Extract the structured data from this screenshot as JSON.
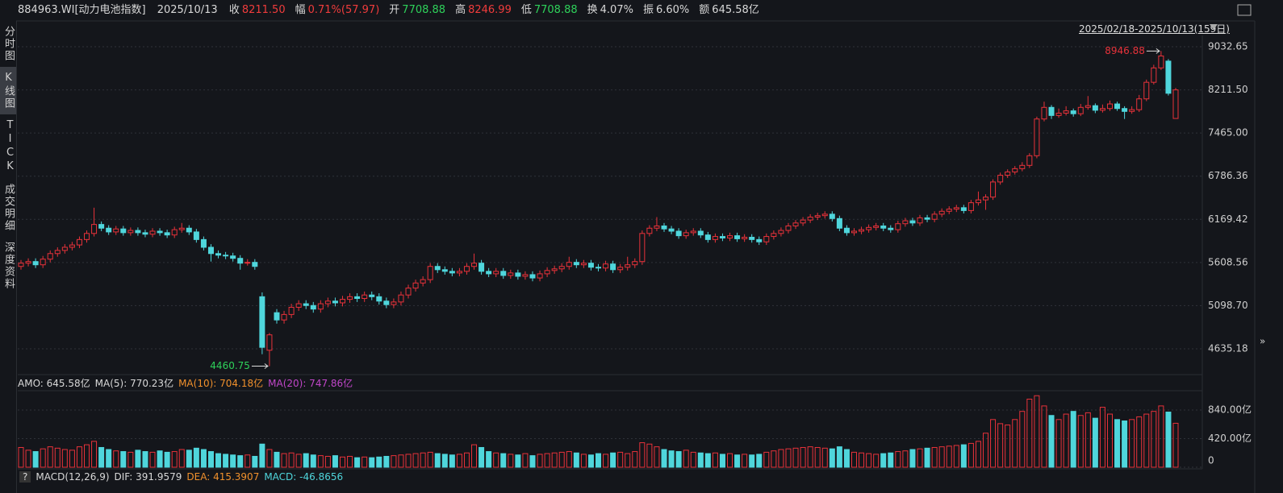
{
  "header": {
    "symbol": "884963.WI[动力电池指数]",
    "date": "2025/10/13",
    "items": [
      {
        "label": "收",
        "value": "8211.50",
        "color": "#f03c3c"
      },
      {
        "label": "幅",
        "value": "0.71%(57.97)",
        "color": "#f03c3c"
      },
      {
        "label": "开",
        "value": "7708.88",
        "color": "#2ed15a"
      },
      {
        "label": "高",
        "value": "8246.99",
        "color": "#f03c3c"
      },
      {
        "label": "低",
        "value": "7708.88",
        "color": "#2ed15a"
      },
      {
        "label": "换",
        "value": "4.07%",
        "color": "#d8d8d8"
      },
      {
        "label": "振",
        "value": "6.60%",
        "color": "#d8d8d8"
      },
      {
        "label": "额",
        "value": "645.58亿",
        "color": "#d8d8d8"
      }
    ]
  },
  "sidebar": {
    "tabs": [
      "分时图",
      "K线图",
      "TICK",
      "成交明细",
      "深度资料"
    ]
  },
  "range_label": "2025/02/18-2025/10/13(159日)",
  "volume_legend": [
    {
      "text": "AMO: 645.58亿",
      "color": "#d8d8d8"
    },
    {
      "text": "MA(5): 770.23亿",
      "color": "#d8d8d8"
    },
    {
      "text": "MA(10): 704.18亿",
      "color": "#f0902c"
    },
    {
      "text": "MA(20): 747.86亿",
      "color": "#c046c8"
    }
  ],
  "macd_legend": [
    {
      "text": "MACD(12,26,9)",
      "color": "#d8d8d8"
    },
    {
      "text": "DIF: 391.9579",
      "color": "#d8d8d8"
    },
    {
      "text": "DEA: 415.3907",
      "color": "#f0902c"
    },
    {
      "text": "MACD: -46.8656",
      "color": "#4fd6dc"
    }
  ],
  "chart_data": [
    {
      "type": "candlestick",
      "log_scale": true,
      "grid": true,
      "up_color": "#e8323a",
      "down_color": "#4fd6dc",
      "ylim": [
        4394,
        9244
      ],
      "yticks": [
        9032.65,
        {
          "value": 8211.5,
          "label": "8211.50"
        },
        {
          "value": 7465,
          "label": "7465.00"
        },
        6786.36,
        6169.42,
        5608.56,
        {
          "value": 5098.7,
          "label": "5098.70"
        },
        4635.18
      ],
      "ohlc": [
        [
          5560,
          5640,
          5520,
          5600
        ],
        [
          5600,
          5660,
          5560,
          5620
        ],
        [
          5620,
          5660,
          5540,
          5580
        ],
        [
          5580,
          5690,
          5540,
          5650
        ],
        [
          5650,
          5760,
          5610,
          5720
        ],
        [
          5720,
          5800,
          5680,
          5760
        ],
        [
          5760,
          5840,
          5720,
          5800
        ],
        [
          5800,
          5870,
          5760,
          5830
        ],
        [
          5830,
          5940,
          5790,
          5900
        ],
        [
          5900,
          6020,
          5860,
          5980
        ],
        [
          5980,
          6330,
          5940,
          6100
        ],
        [
          6100,
          6140,
          6010,
          6050
        ],
        [
          6050,
          6090,
          5960,
          6000
        ],
        [
          6000,
          6080,
          5960,
          6040
        ],
        [
          6040,
          6080,
          5950,
          5990
        ],
        [
          5990,
          6060,
          5950,
          6020
        ],
        [
          6020,
          6060,
          5950,
          5990
        ],
        [
          5990,
          6030,
          5930,
          5970
        ],
        [
          5970,
          6050,
          5930,
          6010
        ],
        [
          6010,
          6050,
          5950,
          5990
        ],
        [
          5990,
          6030,
          5920,
          5960
        ],
        [
          5960,
          6070,
          5920,
          6030
        ],
        [
          6030,
          6120,
          5990,
          6050
        ],
        [
          6050,
          6090,
          5960,
          6000
        ],
        [
          6000,
          6040,
          5860,
          5900
        ],
        [
          5900,
          5940,
          5760,
          5800
        ],
        [
          5800,
          5840,
          5620,
          5720
        ],
        [
          5720,
          5760,
          5660,
          5700
        ],
        [
          5700,
          5740,
          5650,
          5690
        ],
        [
          5690,
          5730,
          5620,
          5660
        ],
        [
          5660,
          5700,
          5520,
          5600
        ],
        [
          5600,
          5650,
          5570,
          5610
        ],
        [
          5610,
          5650,
          5520,
          5560
        ],
        [
          5200,
          5250,
          4580,
          4650
        ],
        [
          4620,
          4800,
          4460.75,
          4780
        ],
        [
          5020,
          5060,
          4900,
          4940
        ],
        [
          4940,
          5040,
          4900,
          5000
        ],
        [
          5000,
          5120,
          4960,
          5080
        ],
        [
          5080,
          5160,
          5040,
          5120
        ],
        [
          5120,
          5160,
          5060,
          5100
        ],
        [
          5100,
          5140,
          5020,
          5060
        ],
        [
          5060,
          5160,
          5020,
          5120
        ],
        [
          5120,
          5190,
          5080,
          5150
        ],
        [
          5150,
          5190,
          5090,
          5130
        ],
        [
          5130,
          5210,
          5090,
          5170
        ],
        [
          5170,
          5240,
          5130,
          5200
        ],
        [
          5200,
          5240,
          5140,
          5180
        ],
        [
          5180,
          5260,
          5140,
          5220
        ],
        [
          5220,
          5260,
          5160,
          5200
        ],
        [
          5200,
          5240,
          5110,
          5150
        ],
        [
          5150,
          5190,
          5070,
          5110
        ],
        [
          5110,
          5180,
          5070,
          5140
        ],
        [
          5140,
          5260,
          5100,
          5220
        ],
        [
          5220,
          5340,
          5180,
          5300
        ],
        [
          5300,
          5400,
          5260,
          5360
        ],
        [
          5360,
          5440,
          5320,
          5400
        ],
        [
          5400,
          5600,
          5360,
          5560
        ],
        [
          5560,
          5600,
          5480,
          5520
        ],
        [
          5520,
          5560,
          5460,
          5500
        ],
        [
          5500,
          5540,
          5440,
          5480
        ],
        [
          5480,
          5540,
          5440,
          5500
        ],
        [
          5500,
          5600,
          5460,
          5560
        ],
        [
          5560,
          5720,
          5520,
          5600
        ],
        [
          5600,
          5640,
          5460,
          5500
        ],
        [
          5500,
          5540,
          5430,
          5470
        ],
        [
          5470,
          5540,
          5430,
          5500
        ],
        [
          5500,
          5540,
          5410,
          5450
        ],
        [
          5450,
          5520,
          5410,
          5480
        ],
        [
          5480,
          5520,
          5400,
          5440
        ],
        [
          5440,
          5500,
          5400,
          5460
        ],
        [
          5460,
          5500,
          5380,
          5420
        ],
        [
          5420,
          5510,
          5380,
          5470
        ],
        [
          5470,
          5550,
          5430,
          5510
        ],
        [
          5510,
          5570,
          5470,
          5530
        ],
        [
          5530,
          5600,
          5490,
          5560
        ],
        [
          5560,
          5680,
          5520,
          5610
        ],
        [
          5610,
          5650,
          5540,
          5580
        ],
        [
          5580,
          5640,
          5540,
          5600
        ],
        [
          5600,
          5640,
          5510,
          5550
        ],
        [
          5550,
          5590,
          5500,
          5540
        ],
        [
          5540,
          5630,
          5500,
          5590
        ],
        [
          5590,
          5630,
          5480,
          5520
        ],
        [
          5520,
          5590,
          5480,
          5550
        ],
        [
          5550,
          5680,
          5510,
          5580
        ],
        [
          5580,
          5660,
          5540,
          5620
        ],
        [
          5620,
          6020,
          5580,
          5980
        ],
        [
          5980,
          6090,
          5940,
          6050
        ],
        [
          6050,
          6200,
          6010,
          6080
        ],
        [
          6080,
          6120,
          6000,
          6040
        ],
        [
          6040,
          6080,
          5970,
          6010
        ],
        [
          6010,
          6050,
          5910,
          5950
        ],
        [
          5950,
          6030,
          5910,
          5990
        ],
        [
          5990,
          6050,
          5950,
          6010
        ],
        [
          6010,
          6050,
          5920,
          5960
        ],
        [
          5960,
          6000,
          5860,
          5900
        ],
        [
          5900,
          5980,
          5860,
          5940
        ],
        [
          5940,
          5980,
          5880,
          5920
        ],
        [
          5920,
          5990,
          5880,
          5950
        ],
        [
          5950,
          5990,
          5870,
          5910
        ],
        [
          5910,
          5970,
          5870,
          5930
        ],
        [
          5930,
          5970,
          5860,
          5900
        ],
        [
          5900,
          5940,
          5830,
          5870
        ],
        [
          5870,
          5980,
          5830,
          5940
        ],
        [
          5940,
          6020,
          5900,
          5980
        ],
        [
          5980,
          6060,
          5940,
          6020
        ],
        [
          6020,
          6120,
          5980,
          6080
        ],
        [
          6080,
          6160,
          6040,
          6120
        ],
        [
          6120,
          6200,
          6080,
          6160
        ],
        [
          6160,
          6240,
          6120,
          6200
        ],
        [
          6200,
          6260,
          6160,
          6220
        ],
        [
          6220,
          6280,
          6180,
          6240
        ],
        [
          6240,
          6280,
          6140,
          6180
        ],
        [
          6180,
          6220,
          6010,
          6050
        ],
        [
          6050,
          6090,
          5950,
          5990
        ],
        [
          5990,
          6050,
          5950,
          6010
        ],
        [
          6010,
          6070,
          5970,
          6030
        ],
        [
          6030,
          6100,
          5990,
          6060
        ],
        [
          6060,
          6120,
          6020,
          6080
        ],
        [
          6080,
          6120,
          6010,
          6050
        ],
        [
          6050,
          6090,
          5990,
          6030
        ],
        [
          6030,
          6150,
          5990,
          6110
        ],
        [
          6110,
          6190,
          6070,
          6150
        ],
        [
          6150,
          6190,
          6080,
          6120
        ],
        [
          6120,
          6230,
          6080,
          6190
        ],
        [
          6190,
          6230,
          6130,
          6170
        ],
        [
          6170,
          6280,
          6130,
          6240
        ],
        [
          6240,
          6320,
          6200,
          6280
        ],
        [
          6280,
          6350,
          6240,
          6310
        ],
        [
          6310,
          6370,
          6270,
          6330
        ],
        [
          6330,
          6370,
          6250,
          6290
        ],
        [
          6290,
          6440,
          6250,
          6400
        ],
        [
          6400,
          6560,
          6360,
          6440
        ],
        [
          6440,
          6520,
          6300,
          6480
        ],
        [
          6480,
          6740,
          6440,
          6700
        ],
        [
          6700,
          6840,
          6660,
          6800
        ],
        [
          6800,
          6890,
          6760,
          6850
        ],
        [
          6850,
          6940,
          6810,
          6900
        ],
        [
          6900,
          7000,
          6860,
          6950
        ],
        [
          6950,
          7140,
          6910,
          7100
        ],
        [
          7100,
          7740,
          7060,
          7700
        ],
        [
          7700,
          8000,
          7660,
          7900
        ],
        [
          7900,
          7940,
          7700,
          7760
        ],
        [
          7760,
          7880,
          7720,
          7800
        ],
        [
          7800,
          7920,
          7760,
          7840
        ],
        [
          7840,
          7880,
          7740,
          7790
        ],
        [
          7790,
          7960,
          7750,
          7900
        ],
        [
          7900,
          8100,
          7860,
          7930
        ],
        [
          7930,
          7970,
          7800,
          7850
        ],
        [
          7850,
          7950,
          7810,
          7880
        ],
        [
          7880,
          8020,
          7840,
          7960
        ],
        [
          7960,
          8000,
          7840,
          7880
        ],
        [
          7880,
          7920,
          7700,
          7830
        ],
        [
          7830,
          7920,
          7790,
          7860
        ],
        [
          7860,
          8120,
          7820,
          8050
        ],
        [
          8050,
          8400,
          8010,
          8350
        ],
        [
          8350,
          8680,
          8310,
          8620
        ],
        [
          8620,
          8946.88,
          8580,
          8850
        ],
        [
          8750,
          8790,
          8110,
          8150
        ],
        [
          7708.88,
          8246.99,
          7708.88,
          8211.5
        ]
      ]
    },
    {
      "type": "bar",
      "ylim": [
        0,
        1100
      ],
      "yticks": [
        0,
        {
          "value": 420,
          "label": "420.00亿"
        },
        {
          "value": 840,
          "label": "840.00亿"
        }
      ],
      "values": [
        290,
        250,
        230,
        270,
        300,
        280,
        260,
        250,
        300,
        330,
        380,
        290,
        260,
        240,
        230,
        220,
        250,
        230,
        220,
        240,
        220,
        230,
        260,
        250,
        280,
        260,
        230,
        200,
        190,
        180,
        170,
        180,
        160,
        340,
        260,
        220,
        200,
        210,
        190,
        200,
        180,
        170,
        160,
        170,
        150,
        160,
        140,
        150,
        140,
        150,
        160,
        170,
        180,
        190,
        200,
        210,
        220,
        200,
        190,
        180,
        190,
        210,
        330,
        290,
        230,
        210,
        200,
        190,
        180,
        200,
        170,
        190,
        200,
        210,
        220,
        230,
        210,
        190,
        180,
        200,
        190,
        210,
        220,
        200,
        230,
        360,
        340,
        300,
        260,
        240,
        230,
        250,
        220,
        210,
        200,
        210,
        190,
        200,
        180,
        190,
        180,
        190,
        220,
        240,
        260,
        270,
        280,
        290,
        300,
        290,
        280,
        270,
        300,
        260,
        220,
        210,
        200,
        190,
        200,
        210,
        230,
        240,
        260,
        270,
        280,
        290,
        300,
        310,
        320,
        330,
        350,
        380,
        500,
        700,
        640,
        620,
        700,
        820,
        1000,
        1050,
        900,
        760,
        700,
        780,
        820,
        760,
        800,
        720,
        880,
        780,
        700,
        680,
        700,
        740,
        780,
        820,
        900,
        810,
        645.58
      ]
    }
  ]
}
